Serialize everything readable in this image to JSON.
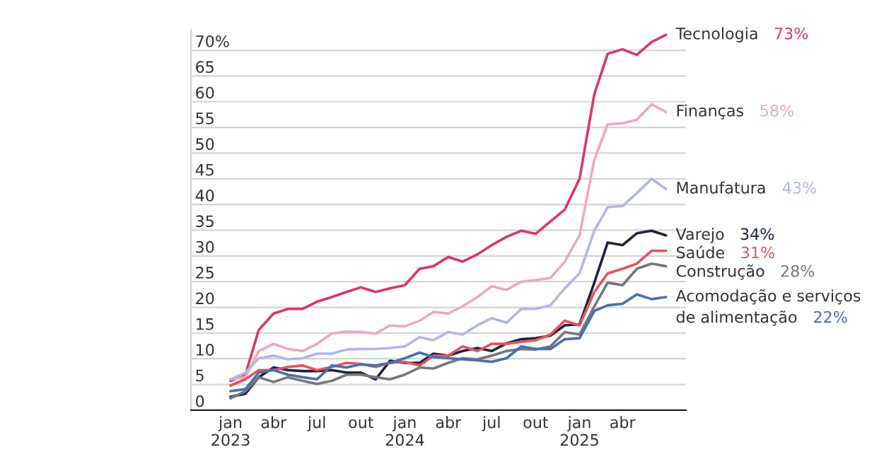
{
  "chart_data": {
    "type": "line",
    "x": [
      "2023-01",
      "2023-02",
      "2023-03",
      "2023-04",
      "2023-05",
      "2023-06",
      "2023-07",
      "2023-08",
      "2023-09",
      "2023-10",
      "2023-11",
      "2023-12",
      "2024-01",
      "2024-02",
      "2024-03",
      "2024-04",
      "2024-05",
      "2024-06",
      "2024-07",
      "2024-08",
      "2024-09",
      "2024-10",
      "2024-11",
      "2024-12",
      "2025-01",
      "2025-02",
      "2025-03",
      "2025-04",
      "2025-05",
      "2025-06",
      "2025-07"
    ],
    "series": [
      {
        "name": "Tecnologia",
        "color": "#d63a63",
        "values": [
          5.7,
          6.9,
          15.6,
          18.8,
          19.7,
          19.7,
          21.1,
          22,
          23,
          23.9,
          23,
          23.7,
          24.3,
          27.5,
          28,
          29.8,
          28.9,
          30.3,
          32.1,
          33.7,
          34.9,
          34.3,
          36.7,
          39,
          45,
          61.5,
          69.3,
          70.2,
          69.1,
          71.6,
          73
        ]
      },
      {
        "name": "Finanças",
        "color": "#f0a8bc",
        "values": [
          6,
          6.4,
          11.5,
          12.9,
          11.9,
          11.5,
          12.9,
          14.9,
          15.3,
          15.2,
          14.9,
          16.5,
          16.3,
          17.4,
          19.1,
          18.8,
          20.2,
          22,
          24.1,
          23.4,
          25,
          25.3,
          25.7,
          28.9,
          34,
          48.7,
          55.6,
          55.8,
          56.5,
          59.5,
          58
        ]
      },
      {
        "name": "Manufatura",
        "color": "#b3b6ea",
        "values": [
          6,
          7.3,
          10.1,
          10.6,
          9.9,
          10.1,
          11,
          11,
          11.8,
          11.9,
          11.9,
          12.1,
          12.4,
          14.2,
          13.6,
          15.2,
          14.7,
          16.5,
          17.9,
          17,
          19.7,
          19.7,
          20.4,
          23.7,
          26.6,
          34.9,
          39.5,
          39.7,
          42.2,
          45,
          43
        ]
      },
      {
        "name": "Varejo",
        "color": "#1e2340",
        "values": [
          2.6,
          3.2,
          6.4,
          8.3,
          7.8,
          7.6,
          7.6,
          7.8,
          7.3,
          7.3,
          6,
          9.6,
          9.2,
          9.2,
          11,
          10.6,
          11.5,
          12.1,
          11.5,
          13,
          13.8,
          14,
          14.5,
          16.5,
          16.7,
          24.8,
          32.6,
          32.1,
          34.4,
          34.9,
          34
        ]
      },
      {
        "name": "Saúde",
        "color": "#e5545a",
        "values": [
          4.8,
          6,
          7.8,
          7.8,
          8.4,
          8.7,
          7.8,
          8.4,
          9.2,
          9,
          8.4,
          9.2,
          9.4,
          8.7,
          10.6,
          10.6,
          12.4,
          11.5,
          12.9,
          12.9,
          13.3,
          13.6,
          14.7,
          17.4,
          16.5,
          23,
          26.6,
          27.5,
          28.5,
          31,
          31
        ]
      },
      {
        "name": "Construção",
        "color": "#777777",
        "values": [
          2.3,
          3.7,
          6.4,
          5.5,
          6.4,
          5.7,
          5.1,
          5.7,
          6.9,
          6.9,
          6.4,
          6,
          6.9,
          8.3,
          8.1,
          9.2,
          10.1,
          9.9,
          10.6,
          11.5,
          11.9,
          11.8,
          12.4,
          15.2,
          14.7,
          20.2,
          24.8,
          24.3,
          27.5,
          28.5,
          28
        ]
      },
      {
        "name": "Acomodação e serviços\nde alimentação",
        "color": "#4a6fb0",
        "values": [
          3.7,
          4.1,
          7.3,
          7.8,
          6.9,
          6.4,
          6,
          8.7,
          8.3,
          8.9,
          8.7,
          9.2,
          10.1,
          11.2,
          10.3,
          10.1,
          9.9,
          9.7,
          9.4,
          10.1,
          12.4,
          11.9,
          11.9,
          13.8,
          14,
          19.3,
          20.4,
          20.7,
          22.5,
          21.6,
          22
        ]
      }
    ],
    "annotations": [
      "73%",
      "58%",
      "43%",
      "34%",
      "31%",
      "28%",
      "22%"
    ],
    "xlim": [
      "2022-10-10",
      "2025-08-12"
    ],
    "xticks": [
      {
        "value": "2023-01",
        "label": "jan\n2023"
      },
      {
        "value": "2023-04",
        "label": "abr"
      },
      {
        "value": "2023-07",
        "label": "jul"
      },
      {
        "value": "2023-10",
        "label": "out"
      },
      {
        "value": "2024-01",
        "label": "jan\n2024"
      },
      {
        "value": "2024-04",
        "label": "abr"
      },
      {
        "value": "2024-07",
        "label": "jul"
      },
      {
        "value": "2024-10",
        "label": "out"
      },
      {
        "value": "2025-01",
        "label": "jan\n2025"
      },
      {
        "value": "2025-04",
        "label": "abr"
      }
    ],
    "ylim": [
      0,
      74
    ],
    "yticks": [
      0,
      5,
      10,
      15,
      20,
      25,
      30,
      35,
      40,
      45,
      50,
      55,
      60,
      65,
      {
        "value": 70,
        "label": "70%"
      }
    ],
    "grid": "y",
    "marker": "none",
    "line_style": "solid"
  }
}
